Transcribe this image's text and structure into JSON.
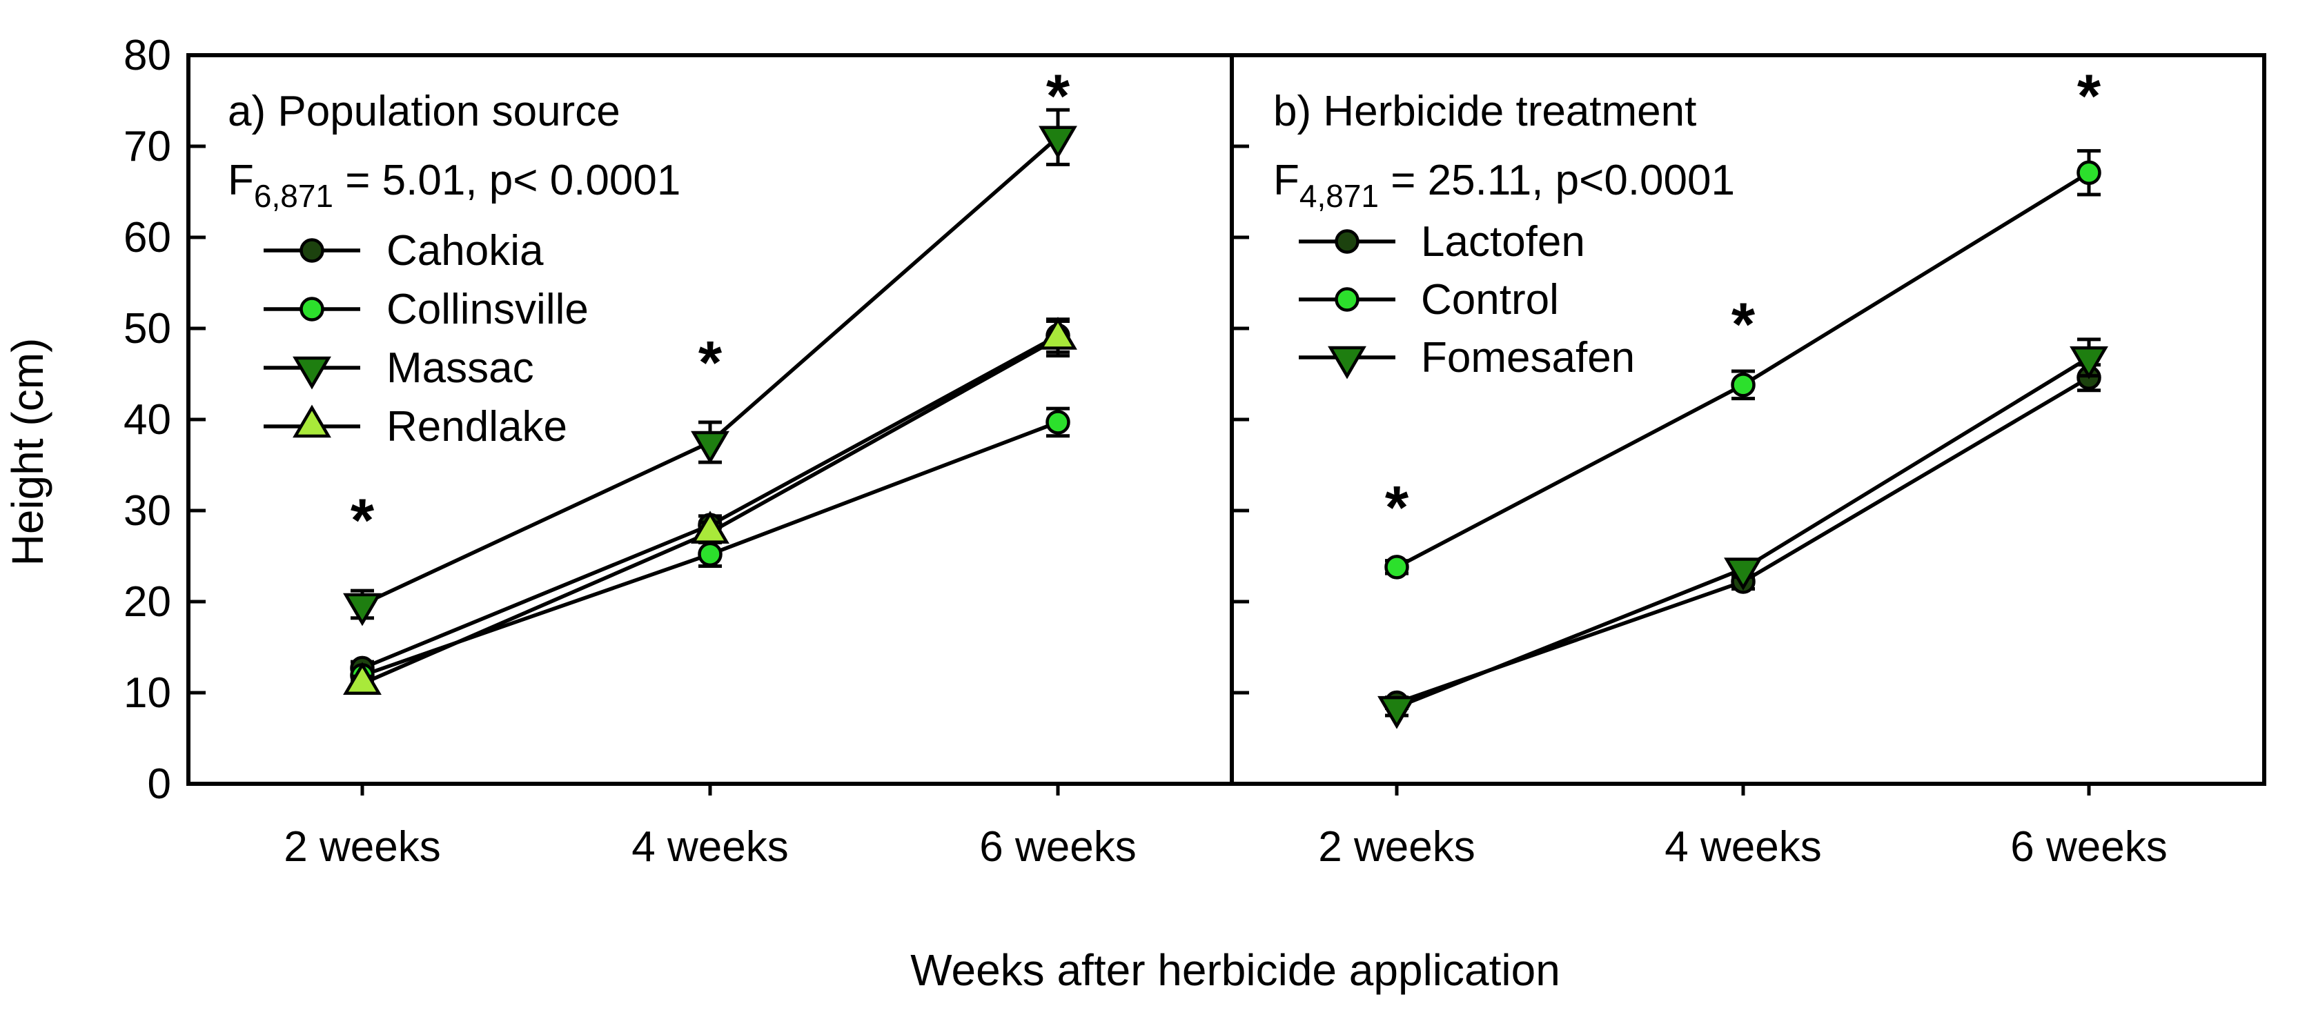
{
  "figure": {
    "background": "#ffffff",
    "ylabel": "Height (cm)",
    "xlabel": "Weeks after herbicide application",
    "yticks": [
      "0",
      "10",
      "20",
      "30",
      "40",
      "50",
      "60",
      "70",
      "80"
    ],
    "line_color": "#000000"
  },
  "chart_data": [
    {
      "type": "line",
      "panel_label": "a) Population source",
      "fstat": {
        "symbol": "F",
        "subscript": "6,871",
        "rest": " = 5.01, p< 0.0001"
      },
      "categories": [
        "2 weeks",
        "4 weeks",
        "6 weeks"
      ],
      "xlabel": "Weeks after herbicide application",
      "ylabel": "Height (cm)",
      "ylim": [
        0,
        80
      ],
      "grid": false,
      "legend_position": "upper-left",
      "series": [
        {
          "name": "Cahokia",
          "marker": "circle",
          "color": "#1C420E",
          "values": [
            12.7,
            28.4,
            49.2
          ],
          "errors": [
            0.7,
            1.0,
            1.8
          ]
        },
        {
          "name": "Collinsville",
          "marker": "circle",
          "color": "#2CE02C",
          "values": [
            11.9,
            25.2,
            39.7
          ],
          "errors": [
            0.7,
            1.3,
            1.5
          ]
        },
        {
          "name": "Massac",
          "marker": "triangle-down",
          "color": "#1E7E10",
          "values": [
            19.7,
            37.5,
            71.0
          ],
          "errors": [
            1.5,
            2.2,
            3.0
          ]
        },
        {
          "name": "Rendlake",
          "marker": "triangle-up",
          "color": "#A9E93A",
          "values": [
            11.0,
            27.6,
            48.9
          ],
          "errors": [
            0.8,
            1.1,
            1.9
          ]
        }
      ],
      "significance_asterisks": [
        {
          "category_index": 0,
          "y": 30.0
        },
        {
          "category_index": 1,
          "y": 47.3
        },
        {
          "category_index": 2,
          "y": 76.6
        }
      ]
    },
    {
      "type": "line",
      "panel_label": "b) Herbicide treatment",
      "fstat": {
        "symbol": "F",
        "subscript": "4,871",
        "rest": " = 25.11, p<0.0001"
      },
      "categories": [
        "2 weeks",
        "4 weeks",
        "6 weeks"
      ],
      "xlabel": "Weeks after herbicide application",
      "ylabel": "Height (cm)",
      "ylim": [
        0,
        80
      ],
      "grid": false,
      "legend_position": "upper-left",
      "series": [
        {
          "name": "Lactofen",
          "marker": "circle",
          "color": "#1C420E",
          "values": [
            8.9,
            22.2,
            44.6
          ],
          "errors": [
            0.6,
            0.8,
            1.4
          ]
        },
        {
          "name": "Control",
          "marker": "circle",
          "color": "#2CE02C",
          "values": [
            23.8,
            43.8,
            67.1
          ],
          "errors": [
            0.7,
            1.5,
            2.4
          ]
        },
        {
          "name": "Fomesafen",
          "marker": "triangle-down",
          "color": "#1E7E10",
          "values": [
            8.4,
            23.6,
            46.8
          ],
          "errors": [
            0.9,
            0.9,
            2.0
          ]
        }
      ],
      "significance_asterisks": [
        {
          "category_index": 0,
          "y": 31.4
        },
        {
          "category_index": 1,
          "y": 51.5
        },
        {
          "category_index": 2,
          "y": 76.6
        }
      ]
    }
  ]
}
